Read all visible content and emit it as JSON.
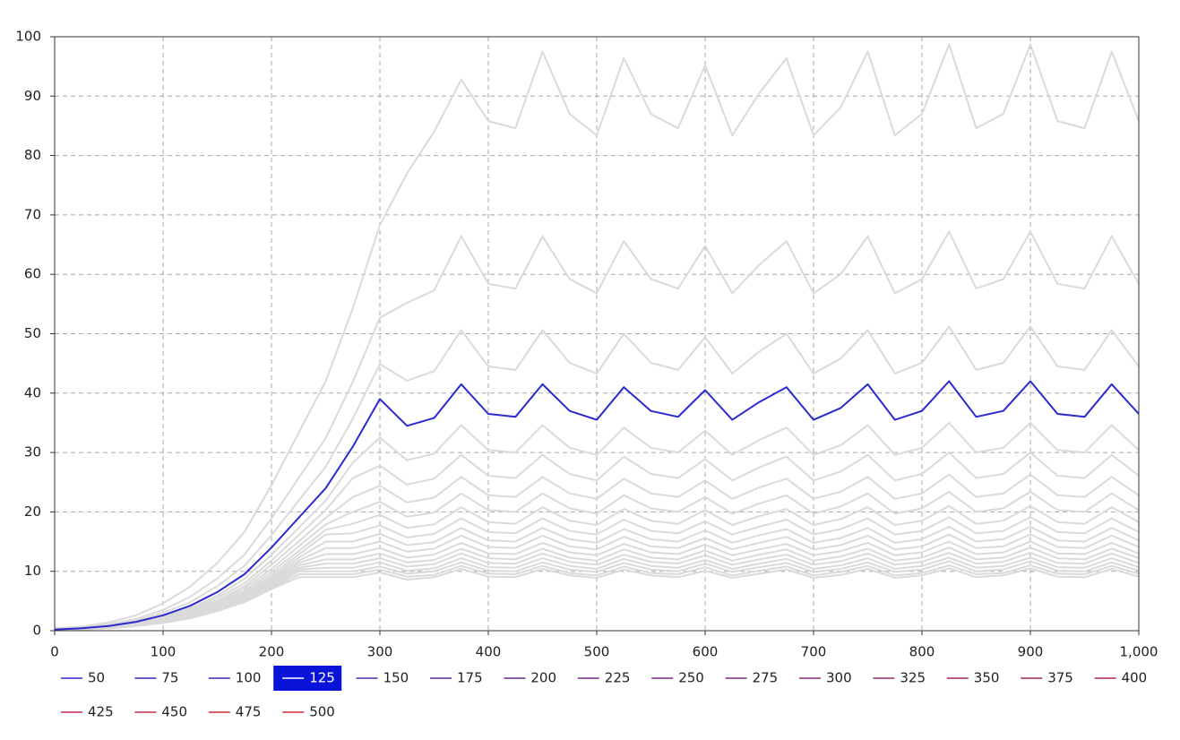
{
  "chart_data": {
    "type": "line",
    "x": [
      0,
      25,
      50,
      75,
      100,
      125,
      150,
      175,
      200,
      225,
      250,
      275,
      300,
      325,
      350,
      375,
      400,
      425,
      450,
      475,
      500,
      525,
      550,
      575,
      600,
      625,
      650,
      675,
      700,
      725,
      750,
      775,
      800,
      825,
      850,
      875,
      900,
      925,
      950,
      975,
      1000
    ],
    "xlim": [
      0,
      1000
    ],
    "ylim": [
      0,
      100
    ],
    "xticks": [
      0,
      100,
      200,
      300,
      400,
      500,
      600,
      700,
      800,
      900,
      {
        "value": 1000,
        "label": "1,000"
      }
    ],
    "yticks": [
      0,
      10,
      20,
      30,
      40,
      50,
      60,
      70,
      80,
      90,
      100
    ],
    "grid": true,
    "highlight_index": 3,
    "inactive_color": "#dadada",
    "highlight_fill": "#0a14d8",
    "series": [
      {
        "name": "50",
        "color": "#2828c8",
        "values": [
          0.4,
          0.7,
          1.4,
          2.6,
          4.6,
          7.4,
          11.4,
          16.6,
          24.5,
          33.3,
          42,
          54.3,
          68.3,
          77,
          84,
          92.8,
          85.8,
          84.6,
          97.5,
          87,
          83.4,
          96.4,
          87,
          84.6,
          95.2,
          83.4,
          90.5,
          96.4,
          83.4,
          88.1,
          97.5,
          83.4,
          87,
          98.7,
          84.6,
          87,
          98.7,
          85.8,
          84.6,
          97.5,
          85.8
        ]
      },
      {
        "name": "75",
        "color": "#3228c0",
        "values": [
          0.3,
          0.5,
          1.1,
          2,
          3.5,
          5.7,
          8.8,
          12.8,
          18.9,
          25.7,
          32.4,
          41.9,
          52.7,
          55.2,
          57.3,
          66.4,
          58.4,
          57.6,
          66.4,
          59.2,
          56.8,
          65.6,
          59.2,
          57.6,
          64.8,
          56.8,
          61.6,
          65.6,
          56.8,
          60,
          66.4,
          56.8,
          59.2,
          67.2,
          57.6,
          59.2,
          67.2,
          58.4,
          57.6,
          66.4,
          58.4
        ]
      },
      {
        "name": "100",
        "color": "#3c28b7",
        "values": [
          0.2,
          0.5,
          0.9,
          1.7,
          3,
          4.8,
          7.5,
          10.9,
          16.1,
          21.9,
          27.6,
          35.7,
          44.9,
          42.1,
          43.7,
          50.6,
          44.5,
          43.9,
          50.6,
          45.1,
          43.3,
          50,
          45.1,
          43.9,
          49.4,
          43.3,
          47,
          50,
          43.3,
          45.8,
          50.6,
          43.3,
          45.1,
          51.2,
          43.9,
          45.1,
          51.2,
          44.5,
          43.9,
          50.6,
          44.5
        ]
      },
      {
        "name": "125",
        "color": "#2a2ad0",
        "values": [
          0.2,
          0.4,
          0.8,
          1.5,
          2.6,
          4.2,
          6.5,
          9.5,
          14,
          19,
          24,
          31,
          39,
          34.5,
          35.8,
          41.5,
          36.5,
          36,
          41.5,
          37,
          35.5,
          41,
          37,
          36,
          40.5,
          35.5,
          38.5,
          41,
          35.5,
          37.5,
          41.5,
          35.5,
          37,
          42,
          36,
          37,
          42,
          36.5,
          36,
          41.5,
          36.5
        ]
      },
      {
        "name": "150",
        "color": "#5028a7",
        "values": [
          0.2,
          0.4,
          0.7,
          1.4,
          2.4,
          3.8,
          5.9,
          8.7,
          12.8,
          17.3,
          21.9,
          28.3,
          32.5,
          28.7,
          29.8,
          34.6,
          30.4,
          30,
          34.6,
          30.8,
          29.6,
          34.2,
          30.8,
          30,
          33.7,
          29.6,
          32.1,
          34.2,
          29.6,
          31.2,
          34.6,
          29.6,
          30.8,
          35,
          30,
          30.8,
          35,
          30.4,
          30,
          34.6,
          30.4
        ]
      },
      {
        "name": "175",
        "color": "#5a289e",
        "values": [
          0.2,
          0.3,
          0.7,
          1.3,
          2.2,
          3.5,
          5.5,
          8,
          11.8,
          16.1,
          20.3,
          25.7,
          27.8,
          24.6,
          25.6,
          29.6,
          26.1,
          25.7,
          29.6,
          26.4,
          25.3,
          29.3,
          26.4,
          25.7,
          28.9,
          25.3,
          27.5,
          29.3,
          25.3,
          26.8,
          29.6,
          25.3,
          26.4,
          30,
          25.7,
          26.4,
          30,
          26.1,
          25.7,
          29.6,
          26.1
        ]
      },
      {
        "name": "200",
        "color": "#642896",
        "values": [
          0.2,
          0.3,
          0.6,
          1.2,
          2.1,
          3.3,
          5.1,
          7.5,
          11.1,
          15,
          19,
          22.5,
          24.4,
          21.6,
          22.4,
          25.9,
          22.8,
          22.5,
          25.9,
          23.1,
          22.2,
          25.6,
          23.1,
          22.5,
          25.3,
          22.2,
          24.1,
          25.6,
          22.2,
          23.4,
          25.9,
          22.2,
          23.1,
          26.3,
          22.5,
          23.1,
          26.3,
          22.8,
          22.5,
          25.9,
          22.8
        ]
      },
      {
        "name": "225",
        "color": "#6e288e",
        "values": [
          0.1,
          0.3,
          0.6,
          1.1,
          1.9,
          3.1,
          4.8,
          7.1,
          10.4,
          14.2,
          17.9,
          20,
          21.7,
          19.2,
          19.9,
          23.1,
          20.3,
          20,
          23.1,
          20.6,
          19.7,
          22.8,
          20.6,
          20,
          22.5,
          19.7,
          21.4,
          22.8,
          19.7,
          20.9,
          23.1,
          19.7,
          20.6,
          23.4,
          20,
          20.6,
          23.4,
          20.3,
          20,
          23.1,
          20.3
        ]
      },
      {
        "name": "250",
        "color": "#782885",
        "values": [
          0.1,
          0.3,
          0.6,
          1.1,
          1.8,
          3,
          4.6,
          6.7,
          9.9,
          13.4,
          17,
          18,
          19.5,
          17.3,
          17.9,
          20.8,
          18.3,
          18,
          20.8,
          18.5,
          17.8,
          20.5,
          18.5,
          18,
          20.3,
          17.8,
          19.3,
          20.5,
          17.8,
          18.8,
          20.8,
          17.8,
          18.5,
          21,
          18,
          18.5,
          21,
          18.3,
          18,
          20.8,
          18.3
        ]
      },
      {
        "name": "275",
        "color": "#82287d",
        "values": [
          0.1,
          0.3,
          0.5,
          1,
          1.8,
          2.8,
          4.4,
          6.4,
          9.4,
          12.8,
          16.2,
          16.4,
          17.7,
          15.7,
          16.3,
          18.9,
          16.6,
          16.4,
          18.9,
          16.8,
          16.2,
          18.7,
          16.8,
          16.4,
          18.4,
          16.2,
          17.5,
          18.7,
          16.2,
          17.1,
          18.9,
          16.2,
          16.8,
          19.1,
          16.4,
          16.8,
          19.1,
          16.6,
          16.4,
          18.9,
          16.6
        ]
      },
      {
        "name": "300",
        "color": "#8c2875",
        "values": [
          0.1,
          0.3,
          0.5,
          1,
          1.7,
          2.7,
          4.2,
          6.1,
          9,
          12.3,
          15,
          15,
          16.3,
          14.4,
          14.9,
          17.3,
          15.2,
          15,
          17.3,
          15.4,
          14.8,
          17.1,
          15.4,
          15,
          16.9,
          14.8,
          16.1,
          17.1,
          14.8,
          15.6,
          17.3,
          14.8,
          15.4,
          17.5,
          15,
          15.4,
          17.5,
          15.2,
          15,
          17.3,
          15.2
        ]
      },
      {
        "name": "325",
        "color": "#96286c",
        "values": [
          0.1,
          0.2,
          0.5,
          0.9,
          1.6,
          2.6,
          4,
          5.9,
          8.7,
          11.8,
          13.9,
          13.9,
          15,
          13.3,
          13.8,
          16,
          14.1,
          13.9,
          16,
          14.2,
          13.7,
          15.8,
          14.2,
          13.9,
          15.6,
          13.7,
          14.8,
          15.8,
          13.7,
          14.4,
          16,
          13.7,
          14.2,
          16.2,
          13.9,
          14.2,
          16.2,
          14.1,
          13.9,
          16,
          14.1
        ]
      },
      {
        "name": "350",
        "color": "#a02864",
        "values": [
          0.1,
          0.2,
          0.5,
          0.9,
          1.6,
          2.5,
          3.9,
          5.7,
          8.4,
          11.4,
          12.9,
          12.9,
          13.9,
          12.3,
          12.8,
          14.8,
          13,
          12.9,
          14.8,
          13.2,
          12.7,
          14.6,
          13.2,
          12.9,
          14.5,
          12.7,
          13.7,
          14.6,
          12.7,
          13.4,
          14.8,
          12.7,
          13.2,
          15,
          12.9,
          13.2,
          15,
          13,
          12.9,
          14.8,
          13
        ]
      },
      {
        "name": "375",
        "color": "#aa285c",
        "values": [
          0.1,
          0.2,
          0.5,
          0.9,
          1.5,
          2.4,
          3.8,
          5.5,
          8.1,
          11,
          12,
          12,
          13,
          11.5,
          11.9,
          13.8,
          12.2,
          12,
          13.8,
          12.3,
          11.8,
          13.7,
          12.3,
          12,
          13.5,
          11.8,
          12.8,
          13.7,
          11.8,
          12.5,
          13.8,
          11.8,
          12.3,
          14,
          12,
          12.3,
          14,
          12.2,
          12,
          13.8,
          12.2
        ]
      },
      {
        "name": "400",
        "color": "#b42853",
        "values": [
          0.1,
          0.2,
          0.4,
          0.8,
          1.5,
          2.3,
          3.6,
          5.3,
          7.8,
          10.6,
          11.3,
          11.3,
          12.2,
          10.8,
          11.2,
          13,
          11.4,
          11.3,
          13,
          11.6,
          11.1,
          12.8,
          11.6,
          11.3,
          12.7,
          11.1,
          12,
          12.8,
          11.1,
          11.7,
          13,
          11.1,
          11.6,
          13.1,
          11.3,
          11.6,
          13.1,
          11.4,
          11.3,
          13,
          11.4
        ]
      },
      {
        "name": "425",
        "color": "#be284b",
        "values": [
          0.1,
          0.2,
          0.4,
          0.8,
          1.4,
          2.3,
          3.5,
          5.1,
          7.6,
          10.3,
          10.6,
          10.6,
          11.5,
          10.1,
          10.5,
          12.2,
          10.7,
          10.6,
          12.2,
          10.9,
          10.4,
          12.1,
          10.9,
          10.6,
          11.9,
          10.4,
          11.3,
          12.1,
          10.4,
          11,
          12.2,
          10.4,
          10.9,
          12.3,
          10.6,
          10.9,
          12.3,
          10.7,
          10.6,
          12.2,
          10.7
        ]
      },
      {
        "name": "450",
        "color": "#c82843",
        "values": [
          0.1,
          0.2,
          0.4,
          0.8,
          1.4,
          2.2,
          3.4,
          5,
          7.4,
          10,
          10,
          10,
          10.8,
          9.6,
          10,
          11.5,
          10.1,
          10,
          11.5,
          10.3,
          9.9,
          11.4,
          10.3,
          10,
          11.3,
          9.9,
          10.7,
          11.4,
          9.9,
          10.4,
          11.5,
          9.9,
          10.3,
          11.7,
          10,
          10.3,
          11.7,
          10.1,
          10,
          11.5,
          10.1
        ]
      },
      {
        "name": "475",
        "color": "#d2283a",
        "values": [
          0.1,
          0.2,
          0.4,
          0.8,
          1.3,
          2.2,
          3.3,
          4.9,
          7.2,
          9.5,
          9.5,
          9.5,
          10.3,
          9.1,
          9.4,
          10.9,
          9.6,
          9.5,
          10.9,
          9.7,
          9.3,
          10.8,
          9.7,
          9.5,
          10.7,
          9.3,
          10.1,
          10.8,
          9.3,
          9.9,
          10.9,
          9.3,
          9.7,
          11,
          9.5,
          9.7,
          11,
          9.6,
          9.5,
          10.9,
          9.6
        ]
      },
      {
        "name": "500",
        "color": "#dc2832",
        "values": [
          0.1,
          0.2,
          0.4,
          0.8,
          1.3,
          2.1,
          3.3,
          4.8,
          7,
          9,
          9,
          9,
          9.8,
          8.6,
          9,
          10.4,
          9.1,
          9,
          10.4,
          9.3,
          8.9,
          10.3,
          9.3,
          9,
          10.1,
          8.9,
          9.6,
          10.3,
          8.9,
          9.4,
          10.4,
          8.9,
          9.3,
          10.5,
          9,
          9.3,
          10.5,
          9.1,
          9,
          10.4,
          9.1
        ]
      }
    ]
  }
}
